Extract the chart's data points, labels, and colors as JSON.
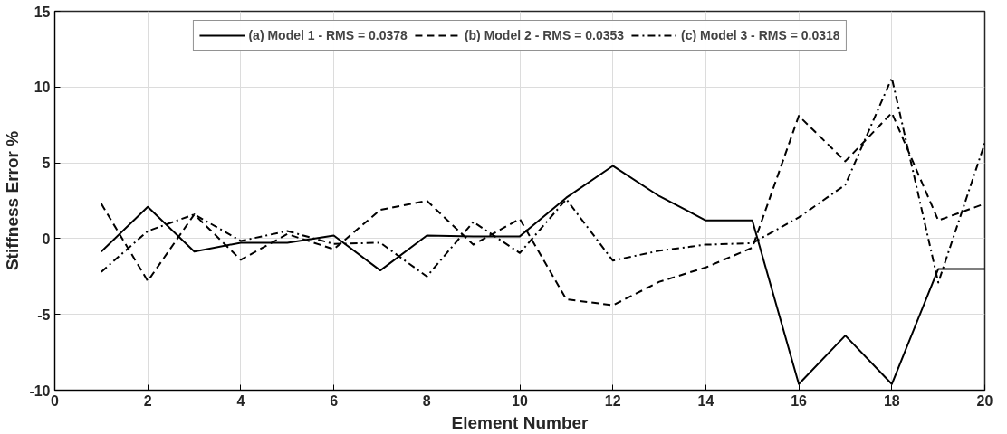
{
  "chart_data": {
    "type": "line",
    "xlabel": "Element Number",
    "ylabel": "Stiffness Error %",
    "x": [
      1,
      2,
      3,
      4,
      5,
      6,
      7,
      8,
      9,
      10,
      11,
      12,
      13,
      14,
      15,
      16,
      17,
      18,
      19,
      20
    ],
    "series": [
      {
        "name": "(a) Model 1 - RMS = 0.0378",
        "color": "#000000",
        "line_style": "solid",
        "values": [
          -0.86,
          2.1,
          -0.86,
          -0.27,
          -0.27,
          0.2,
          -2.1,
          0.2,
          0.15,
          0.15,
          2.7,
          4.8,
          2.8,
          1.2,
          1.2,
          -9.6,
          -6.4,
          -9.6,
          -2.0,
          -2.0
        ]
      },
      {
        "name": "(b) Model 2 - RMS = 0.0353",
        "color": "#000000",
        "line_style": "dashed",
        "values": [
          2.3,
          -2.8,
          1.6,
          -1.4,
          0.3,
          -0.7,
          1.9,
          2.5,
          -0.4,
          1.3,
          -4.0,
          -4.4,
          -2.85,
          -1.9,
          -0.6,
          8.1,
          5.1,
          8.3,
          1.2,
          2.3
        ]
      },
      {
        "name": "(c) Model 3 - RMS = 0.0318",
        "color": "#000000",
        "line_style": "dashdot",
        "values": [
          -2.2,
          0.5,
          1.6,
          -0.15,
          0.5,
          -0.35,
          -0.27,
          -2.5,
          1.1,
          -0.95,
          2.6,
          -1.45,
          -0.8,
          -0.4,
          -0.3,
          1.4,
          3.55,
          10.6,
          -2.9,
          6.3
        ]
      }
    ],
    "xlim": [
      0,
      20
    ],
    "xticks": [
      0,
      2,
      4,
      6,
      8,
      10,
      12,
      14,
      16,
      18,
      20
    ],
    "ylim": [
      -10,
      15
    ],
    "yticks": [
      -10,
      -5,
      0,
      5,
      10,
      15
    ],
    "grid": true,
    "legend": "top",
    "marker": "none"
  }
}
